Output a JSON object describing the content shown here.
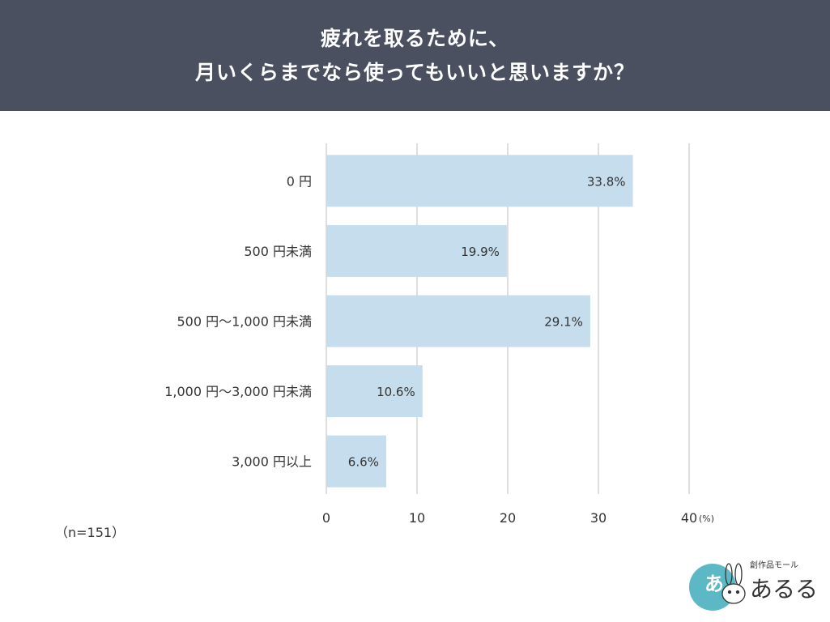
{
  "header": {
    "title_line1": "疲れを取るために、",
    "title_line2": "月いくらまでなら使ってもいいと思いますか？"
  },
  "chart_data": {
    "type": "bar",
    "orientation": "horizontal",
    "categories": [
      "0 円",
      "500 円未満",
      "500 円～1,000 円未満",
      "1,000 円～3,000 円未満",
      "3,000 円以上"
    ],
    "values": [
      33.8,
      19.9,
      29.1,
      10.6,
      6.6
    ],
    "value_labels": [
      "33.8%",
      "19.9%",
      "29.1%",
      "10.6%",
      "6.6%"
    ],
    "xlim": [
      0,
      40
    ],
    "xticks": [
      0,
      10,
      20,
      30,
      40
    ],
    "xtick_labels": [
      "0",
      "10",
      "20",
      "30",
      "40"
    ],
    "unit": "(%)",
    "grid": true,
    "colors": {
      "bar": "#c5ddec",
      "grid": "#d4d4d4",
      "text": "#333333"
    }
  },
  "note": "（n=151）",
  "logo": {
    "tagline": "創作品モール",
    "name": "あるる",
    "badge_char": "あ",
    "color": "#5bb8c4",
    "icon": "rabbit-icon"
  },
  "theme": {
    "header_bg": "#4b5060",
    "header_text": "#ffffff"
  }
}
